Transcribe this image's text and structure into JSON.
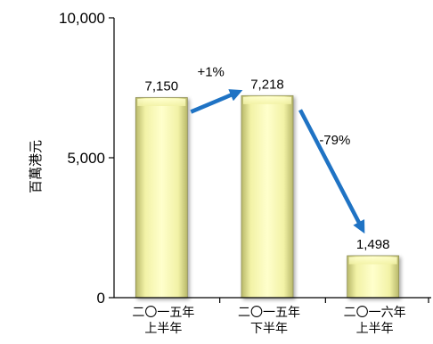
{
  "chart_data": {
    "type": "bar",
    "title": "",
    "xlabel": "",
    "ylabel": "百萬港元",
    "ylim": [
      0,
      10000
    ],
    "yticks": [
      {
        "value": 0,
        "label": "0"
      },
      {
        "value": 5000,
        "label": "5,000"
      },
      {
        "value": 10000,
        "label": "10,000"
      }
    ],
    "categories": [
      [
        "二〇一五年",
        "上半年"
      ],
      [
        "二〇一五年",
        "下半年"
      ],
      [
        "二〇一六年",
        "上半年"
      ]
    ],
    "values": [
      7150,
      7218,
      1498
    ],
    "data_labels": [
      "7,150",
      "7,218",
      "1,498"
    ],
    "annotations": [
      {
        "from_bar": 0,
        "to_bar": 1,
        "label": "+1%"
      },
      {
        "from_bar": 1,
        "to_bar": 2,
        "label": "-79%"
      }
    ],
    "grid": false,
    "legend": "none",
    "colors": {
      "bar_fill_light": "#ffffcc",
      "bar_fill_mid": "#f2f2a6",
      "bar_fill_dark": "#b8b86a",
      "bar_edge": "#8f8f55",
      "arrow": "#1f73c4",
      "axis": "#000000"
    }
  }
}
